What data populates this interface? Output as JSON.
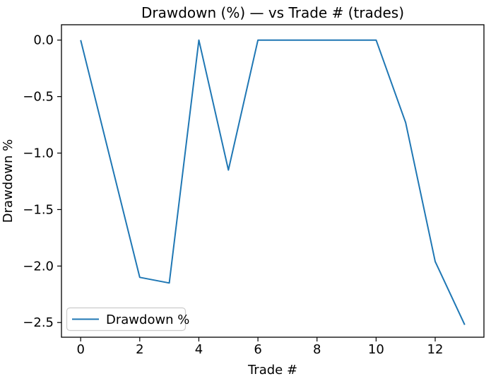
{
  "title": "Drawdown (%) — vs Trade # (trades)",
  "axes": {
    "xlabel": "Trade #",
    "ylabel": "Drawdown %"
  },
  "legend": {
    "label": "Drawdown %"
  },
  "colors": {
    "line": "#1f77b4",
    "spine": "#000000",
    "text": "#000000",
    "legend_border": "#cccccc",
    "background": "#ffffff"
  },
  "chart_data": {
    "type": "line",
    "title": "Drawdown (%) — vs Trade # (trades)",
    "xlabel": "Trade #",
    "ylabel": "Drawdown %",
    "x": [
      0,
      1,
      2,
      3,
      4,
      5,
      6,
      7,
      8,
      9,
      10,
      11,
      12,
      13
    ],
    "series": [
      {
        "name": "Drawdown %",
        "color": "#1f77b4",
        "values": [
          0.0,
          -1.05,
          -2.1,
          -2.15,
          0.0,
          -1.15,
          0.0,
          0.0,
          0.0,
          0.0,
          0.0,
          -0.73,
          -1.96,
          -2.52
        ]
      }
    ],
    "xticks": [
      0,
      2,
      4,
      6,
      8,
      10,
      12
    ],
    "xticklabels": [
      "0",
      "2",
      "4",
      "6",
      "8",
      "10",
      "12"
    ],
    "yticks": [
      0.0,
      -0.5,
      -1.0,
      -1.5,
      -2.0,
      -2.5
    ],
    "yticklabels": [
      "0.0",
      "−0.5",
      "−1.0",
      "−1.5",
      "−2.0",
      "−2.5"
    ],
    "xlim": [
      -0.65,
      13.65
    ],
    "ylim": [
      -2.63,
      0.136
    ],
    "grid": false,
    "legend_position": "lower left"
  }
}
